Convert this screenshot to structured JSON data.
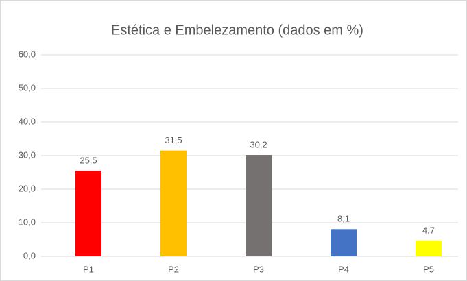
{
  "chart_data": {
    "type": "bar",
    "title": "Estética e Embelezamento (dados em %)",
    "categories": [
      "P1",
      "P2",
      "P3",
      "P4",
      "P5"
    ],
    "values": [
      25.5,
      31.5,
      30.2,
      8.1,
      4.7
    ],
    "value_labels": [
      "25,5",
      "31,5",
      "30,2",
      "8,1",
      "4,7"
    ],
    "colors": [
      "#ff0000",
      "#ffc000",
      "#767171",
      "#4472c4",
      "#ffff00"
    ],
    "ylim": [
      0,
      60
    ],
    "yticks": [
      {
        "value": 0,
        "label": "0,0"
      },
      {
        "value": 10,
        "label": "10,0"
      },
      {
        "value": 20,
        "label": "20,0"
      },
      {
        "value": 30,
        "label": "30,0"
      },
      {
        "value": 40,
        "label": "40,0"
      },
      {
        "value": 50,
        "label": "50,0"
      },
      {
        "value": 60,
        "label": "60,0"
      }
    ],
    "grid": true
  }
}
